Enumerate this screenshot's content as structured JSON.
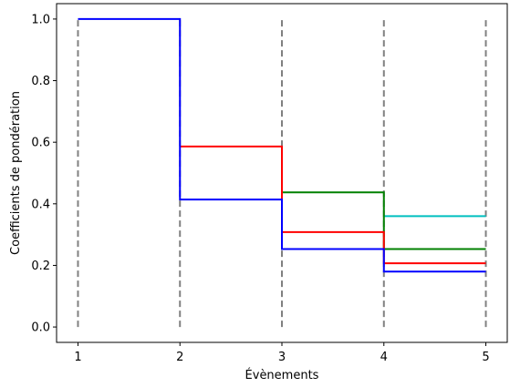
{
  "chart_data": {
    "type": "line",
    "title": "",
    "xlabel": "Évènements",
    "ylabel": "Coefficients de pondération",
    "xlim": [
      0.79,
      5.21
    ],
    "ylim": [
      -0.05,
      1.05
    ],
    "x_ticks": [
      1,
      2,
      3,
      4,
      5
    ],
    "x_tick_labels": [
      "1",
      "2",
      "3",
      "4",
      "5"
    ],
    "y_ticks": [
      0.0,
      0.2,
      0.4,
      0.6,
      0.8,
      1.0
    ],
    "y_tick_labels": [
      "0.0",
      "0.2",
      "0.4",
      "0.6",
      "0.8",
      "1.0"
    ],
    "grid": false,
    "legend": "none",
    "vertical_lines": {
      "x": [
        1,
        2,
        3,
        4,
        5
      ],
      "y_range": [
        0,
        1
      ],
      "style": "dashed",
      "color": "#808080"
    },
    "series": [
      {
        "color": "#00bfbf",
        "x": [
          4,
          5
        ],
        "y": [
          0.36,
          0.36
        ]
      },
      {
        "color": "#008000",
        "x": [
          3,
          4,
          4,
          5
        ],
        "y": [
          0.437,
          0.437,
          0.253,
          0.253
        ]
      },
      {
        "color": "#ff0000",
        "x": [
          2,
          3,
          3,
          4,
          4,
          5
        ],
        "y": [
          0.586,
          0.586,
          0.308,
          0.308,
          0.207,
          0.207
        ]
      },
      {
        "color": "#0000ff",
        "x": [
          1,
          2,
          2,
          3,
          3,
          4,
          4,
          5
        ],
        "y": [
          1.0,
          1.0,
          0.414,
          0.414,
          0.253,
          0.253,
          0.18,
          0.18
        ]
      }
    ]
  }
}
